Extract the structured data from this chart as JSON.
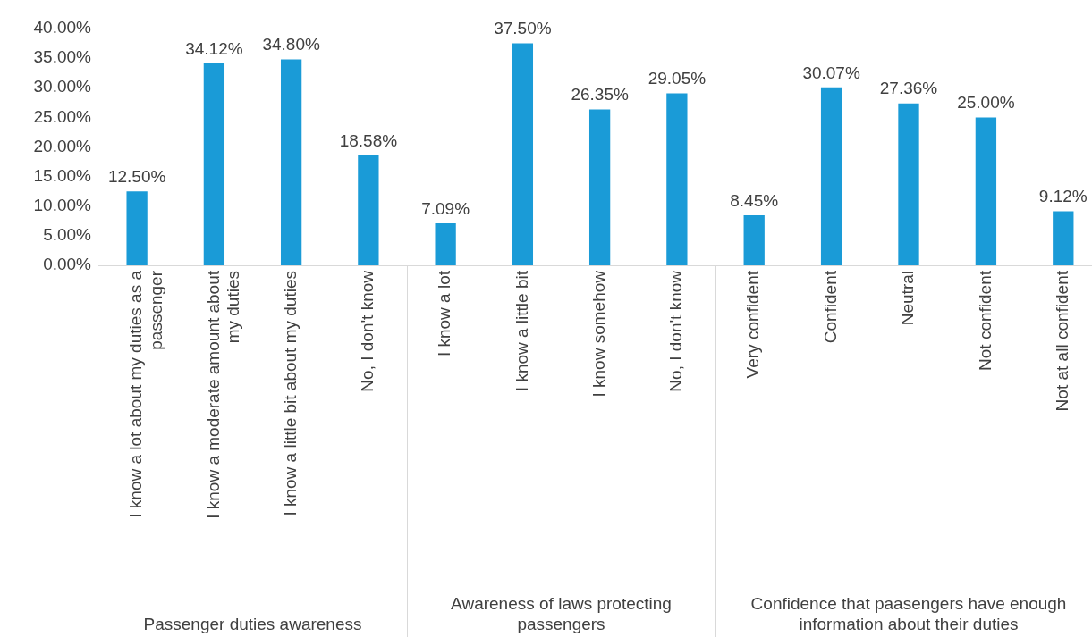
{
  "chart_data": [
    {
      "type": "bar",
      "xlabel": "Passenger duties awareness",
      "categories": [
        "I know a lot about my duties as a passenger",
        "I know a moderate amount about my duties",
        "I know a little bit about my duties",
        "No, I don't know"
      ],
      "values": [
        12.5,
        34.12,
        34.8,
        18.58
      ],
      "value_labels": [
        "12.50%",
        "34.12%",
        "34.80%",
        "18.58%"
      ],
      "color": "#1a9bd7",
      "ylim": [
        0,
        40
      ],
      "yticks": [
        {
          "value": 0,
          "label": "0.00%"
        },
        {
          "value": 5,
          "label": "5.00%"
        },
        {
          "value": 10,
          "label": "10.00%"
        },
        {
          "value": 15,
          "label": "15.00%"
        },
        {
          "value": 20,
          "label": "20.00%"
        },
        {
          "value": 25,
          "label": "25.00%"
        },
        {
          "value": 30,
          "label": "30.00%"
        },
        {
          "value": 35,
          "label": "35.00%"
        },
        {
          "value": 40,
          "label": "40.00%"
        }
      ],
      "grid": false,
      "legend": false
    },
    {
      "type": "bar",
      "xlabel": "Awareness of laws protecting passengers",
      "categories": [
        "I know a lot",
        "I know a little bit",
        "I know somehow",
        "No, I don't know"
      ],
      "values": [
        7.09,
        37.5,
        26.35,
        29.05
      ],
      "value_labels": [
        "7.09%",
        "37.50%",
        "26.35%",
        "29.05%"
      ],
      "color": "#1a9bd7",
      "ylim": [
        0,
        40
      ],
      "tick_labels": "x",
      "grid": false,
      "legend": false
    },
    {
      "type": "bar",
      "xlabel": "Confidence that paasengers have enough information about their duties",
      "categories": [
        "Very confident",
        "Confident",
        "Neutral",
        "Not confident",
        "Not at all confident"
      ],
      "values": [
        8.45,
        30.07,
        27.36,
        25.0,
        9.12
      ],
      "value_labels": [
        "8.45%",
        "30.07%",
        "27.36%",
        "25.00%",
        "9.12%"
      ],
      "color": "#1a9bd7",
      "ylim": [
        0,
        40
      ],
      "tick_labels": "x",
      "grid": false,
      "legend": false
    }
  ]
}
